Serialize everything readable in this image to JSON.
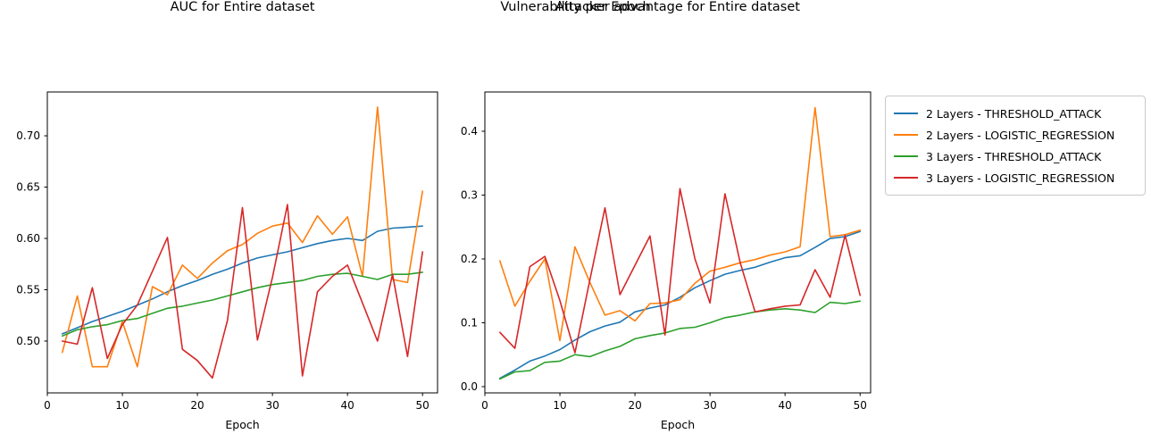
{
  "figure": {
    "suptitle": "Vulnerability per Epoch",
    "background": "#ffffff"
  },
  "legend": {
    "position": "outside-upper-right",
    "items": [
      {
        "label": "2 Layers - THRESHOLD_ATTACK",
        "color": "#1f77b4"
      },
      {
        "label": "2 Layers - LOGISTIC_REGRESSION",
        "color": "#ff7f0e"
      },
      {
        "label": "3 Layers - THRESHOLD_ATTACK",
        "color": "#2ca02c"
      },
      {
        "label": "3 Layers - LOGISTIC_REGRESSION",
        "color": "#d62728"
      }
    ]
  },
  "chart_data": [
    {
      "type": "line",
      "title": "AUC for Entire dataset",
      "xlabel": "Epoch",
      "grid": false,
      "x": [
        2,
        4,
        6,
        8,
        10,
        12,
        14,
        16,
        18,
        20,
        22,
        24,
        26,
        28,
        30,
        32,
        34,
        36,
        38,
        40,
        42,
        44,
        46,
        48,
        50
      ],
      "xlim": [
        0,
        52.0
      ],
      "ylim": [
        0.4495,
        0.7427
      ],
      "xticks": [
        0,
        10,
        20,
        30,
        40,
        50
      ],
      "yticks": [
        {
          "v": 0.5,
          "label": "0.50"
        },
        {
          "v": 0.55,
          "label": "0.55"
        },
        {
          "v": 0.6,
          "label": "0.60"
        },
        {
          "v": 0.65,
          "label": "0.65"
        },
        {
          "v": 0.7,
          "label": "0.70"
        }
      ],
      "series": [
        {
          "name": "2 Layers - THRESHOLD_ATTACK",
          "color": "#1f77b4",
          "values": [
            0.507,
            0.513,
            0.519,
            0.524,
            0.529,
            0.535,
            0.541,
            0.548,
            0.554,
            0.559,
            0.565,
            0.57,
            0.576,
            0.581,
            0.584,
            0.587,
            0.591,
            0.595,
            0.598,
            0.6,
            0.598,
            0.607,
            0.61,
            0.611,
            0.612
          ]
        },
        {
          "name": "2 Layers - LOGISTIC_REGRESSION",
          "color": "#ff7f0e",
          "values": [
            0.489,
            0.544,
            0.475,
            0.475,
            0.519,
            0.475,
            0.553,
            0.545,
            0.574,
            0.561,
            0.576,
            0.588,
            0.594,
            0.605,
            0.612,
            0.615,
            0.596,
            0.622,
            0.604,
            0.621,
            0.563,
            0.728,
            0.56,
            0.557,
            0.646
          ]
        },
        {
          "name": "3 Layers - THRESHOLD_ATTACK",
          "color": "#2ca02c",
          "values": [
            0.505,
            0.511,
            0.514,
            0.516,
            0.52,
            0.522,
            0.527,
            0.532,
            0.534,
            0.537,
            0.54,
            0.544,
            0.548,
            0.552,
            0.555,
            0.557,
            0.559,
            0.563,
            0.565,
            0.566,
            0.563,
            0.56,
            0.565,
            0.565,
            0.567
          ]
        },
        {
          "name": "3 Layers - LOGISTIC_REGRESSION",
          "color": "#d62728",
          "values": [
            0.5,
            0.497,
            0.552,
            0.483,
            0.516,
            0.535,
            0.568,
            0.601,
            0.492,
            0.481,
            0.464,
            0.52,
            0.63,
            0.501,
            0.562,
            0.633,
            0.466,
            0.548,
            0.563,
            0.574,
            0.537,
            0.5,
            0.565,
            0.485,
            0.587
          ]
        }
      ]
    },
    {
      "type": "line",
      "title": "Attacker advantage for Entire dataset",
      "xlabel": "Epoch",
      "grid": false,
      "x": [
        2,
        4,
        6,
        8,
        10,
        12,
        14,
        16,
        18,
        20,
        22,
        24,
        26,
        28,
        30,
        32,
        34,
        36,
        38,
        40,
        42,
        44,
        46,
        48,
        50
      ],
      "xlim": [
        0,
        51.4
      ],
      "ylim": [
        -0.0098,
        0.4615
      ],
      "xticks": [
        0,
        10,
        20,
        30,
        40,
        50
      ],
      "yticks": [
        {
          "v": 0.0,
          "label": "0.0"
        },
        {
          "v": 0.1,
          "label": "0.1"
        },
        {
          "v": 0.2,
          "label": "0.2"
        },
        {
          "v": 0.3,
          "label": "0.3"
        },
        {
          "v": 0.4,
          "label": "0.4"
        }
      ],
      "series": [
        {
          "name": "2 Layers - THRESHOLD_ATTACK",
          "color": "#1f77b4",
          "values": [
            0.013,
            0.026,
            0.04,
            0.048,
            0.058,
            0.073,
            0.086,
            0.095,
            0.101,
            0.117,
            0.123,
            0.128,
            0.14,
            0.155,
            0.166,
            0.176,
            0.182,
            0.187,
            0.195,
            0.202,
            0.205,
            0.218,
            0.232,
            0.235,
            0.243
          ]
        },
        {
          "name": "2 Layers - LOGISTIC_REGRESSION",
          "color": "#ff7f0e",
          "values": [
            0.197,
            0.126,
            0.165,
            0.2,
            0.072,
            0.219,
            0.163,
            0.112,
            0.119,
            0.103,
            0.13,
            0.131,
            0.136,
            0.162,
            0.181,
            0.187,
            0.194,
            0.199,
            0.206,
            0.211,
            0.219,
            0.437,
            0.235,
            0.238,
            0.245
          ]
        },
        {
          "name": "3 Layers - THRESHOLD_ATTACK",
          "color": "#2ca02c",
          "values": [
            0.012,
            0.023,
            0.025,
            0.038,
            0.04,
            0.05,
            0.047,
            0.056,
            0.063,
            0.075,
            0.08,
            0.084,
            0.091,
            0.093,
            0.1,
            0.108,
            0.112,
            0.117,
            0.12,
            0.122,
            0.12,
            0.116,
            0.132,
            0.13,
            0.134
          ]
        },
        {
          "name": "3 Layers - LOGISTIC_REGRESSION",
          "color": "#d62728",
          "values": [
            0.085,
            0.06,
            0.188,
            0.204,
            0.135,
            0.053,
            0.168,
            0.28,
            0.144,
            0.19,
            0.236,
            0.081,
            0.31,
            0.2,
            0.131,
            0.302,
            0.195,
            0.117,
            0.122,
            0.126,
            0.128,
            0.183,
            0.14,
            0.237,
            0.143
          ]
        }
      ]
    }
  ]
}
